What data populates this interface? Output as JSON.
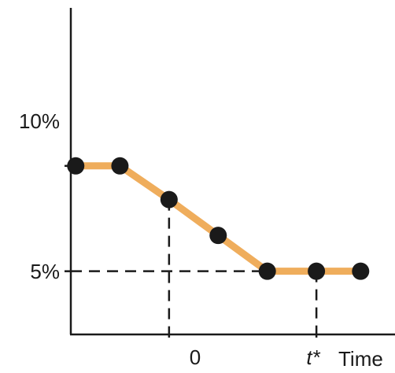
{
  "chart_data": {
    "type": "line",
    "title": "",
    "xlabel": "Time",
    "ylabel": "",
    "x_tick_labels": [
      "0",
      "t*"
    ],
    "y_tick_labels": [
      "10%",
      "5%"
    ],
    "x_ticks": [
      0,
      3
    ],
    "y_ticks": [
      10,
      5
    ],
    "xlim": [
      -2.0,
      4.6
    ],
    "ylim": [
      2.0,
      17.5
    ],
    "grid": false,
    "series": [
      {
        "x": [
          -1.9,
          -1.0,
          0.0,
          1.0,
          2.0,
          3.0,
          3.9
        ],
        "y": [
          10,
          10,
          8.4,
          6.7,
          5,
          5,
          5
        ],
        "line_color": "#efad5c",
        "marker_color": "#1a1a1a"
      }
    ],
    "reference_lines": [
      {
        "from": [
          -2.0,
          10
        ],
        "to": [
          -1.9,
          10
        ]
      },
      {
        "from": [
          -2.0,
          5
        ],
        "to": [
          3.0,
          5
        ]
      },
      {
        "from": [
          0.0,
          8.4
        ],
        "to": [
          0.0,
          2.0
        ]
      },
      {
        "from": [
          3.0,
          5
        ],
        "to": [
          3.0,
          2.0
        ]
      }
    ]
  }
}
